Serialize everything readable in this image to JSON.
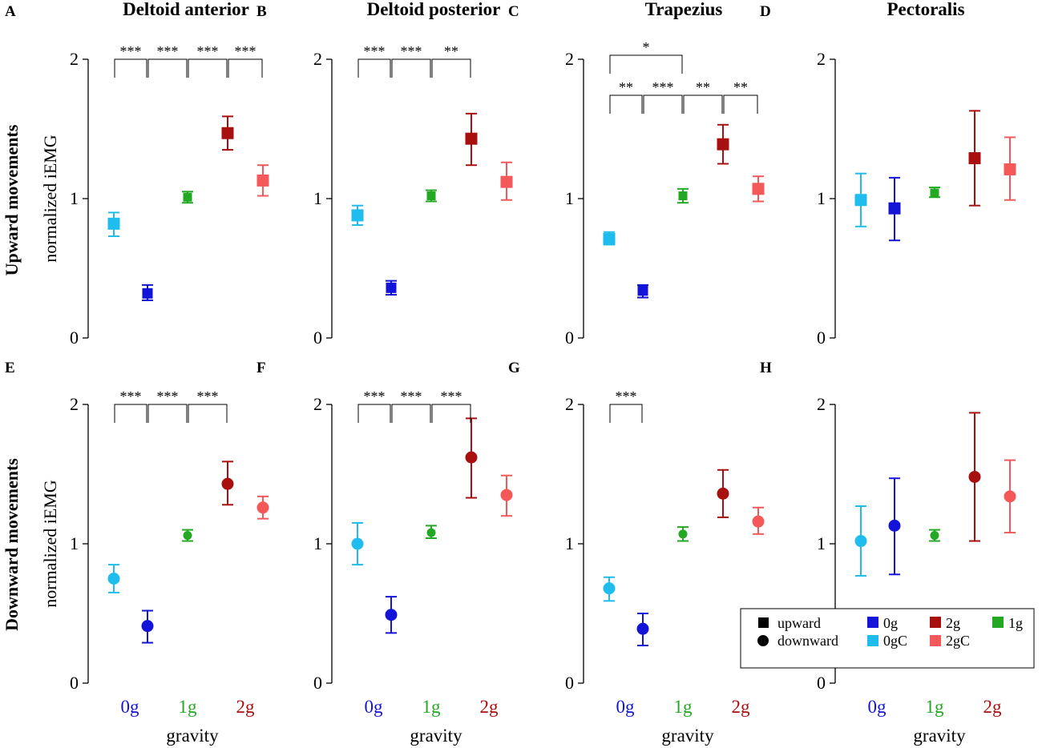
{
  "figure": {
    "row_labels": [
      "Upward movements",
      "Downward movements"
    ],
    "y_axis_label": "normalized iEMG",
    "x_axis_label": "gravity",
    "x_group_labels": [
      {
        "label": "0g",
        "color": "#1414d8"
      },
      {
        "label": "1g",
        "color": "#22a822"
      },
      {
        "label": "2g",
        "color": "#a81010"
      }
    ],
    "colors": {
      "0gC": "#1ebdee",
      "0g": "#1414d8",
      "1g": "#22a822",
      "2g": "#a81010",
      "2gC": "#f45858"
    },
    "legend": {
      "shape_entries": [
        {
          "label": "upward",
          "shape": "square"
        },
        {
          "label": "downward",
          "shape": "circle"
        }
      ],
      "color_entries": [
        {
          "label": "0g",
          "color": "#1414d8"
        },
        {
          "label": "0gC",
          "color": "#1ebdee"
        },
        {
          "label": "2g",
          "color": "#a81010"
        },
        {
          "label": "2gC",
          "color": "#f45858"
        },
        {
          "label": "1g",
          "color": "#22a822"
        }
      ]
    }
  },
  "chart_data": [
    {
      "panel": "A",
      "title": "Deltoid anterior",
      "type": "scatter",
      "direction": "upward",
      "marker": "square",
      "ylim": [
        0,
        2
      ],
      "yticks": [
        "0",
        "1",
        "2"
      ],
      "categories": [
        "0gC",
        "0g",
        "1g",
        "2g",
        "2gC"
      ],
      "values": [
        0.82,
        0.32,
        1.01,
        1.47,
        1.13
      ],
      "err_low": [
        0.73,
        0.27,
        0.97,
        1.35,
        1.02
      ],
      "err_high": [
        0.9,
        0.38,
        1.05,
        1.59,
        1.24
      ],
      "significance": [
        {
          "from": "0gC",
          "to": "0g",
          "label": "***",
          "level": 0
        },
        {
          "from": "0g",
          "to": "1g",
          "label": "***",
          "level": 0
        },
        {
          "from": "1g",
          "to": "2g",
          "label": "***",
          "level": 0
        },
        {
          "from": "2g",
          "to": "2gC",
          "label": "***",
          "level": 0
        }
      ]
    },
    {
      "panel": "B",
      "title": "Deltoid posterior",
      "type": "scatter",
      "direction": "upward",
      "marker": "square",
      "ylim": [
        0,
        2
      ],
      "yticks": [
        "0",
        "1",
        "2"
      ],
      "categories": [
        "0gC",
        "0g",
        "1g",
        "2g",
        "2gC"
      ],
      "values": [
        0.88,
        0.36,
        1.02,
        1.43,
        1.12
      ],
      "err_low": [
        0.81,
        0.31,
        0.98,
        1.24,
        0.99
      ],
      "err_high": [
        0.95,
        0.41,
        1.06,
        1.61,
        1.26
      ],
      "significance": [
        {
          "from": "0gC",
          "to": "0g",
          "label": "***",
          "level": 0
        },
        {
          "from": "0g",
          "to": "1g",
          "label": "***",
          "level": 0
        },
        {
          "from": "1g",
          "to": "2g",
          "label": "**",
          "level": 0
        }
      ]
    },
    {
      "panel": "C",
      "title": "Trapezius",
      "type": "scatter",
      "direction": "upward",
      "marker": "square",
      "ylim": [
        0,
        2
      ],
      "yticks": [
        "0",
        "1",
        "2"
      ],
      "categories": [
        "0gC",
        "0g",
        "1g",
        "2g",
        "2gC"
      ],
      "values": [
        0.71,
        0.34,
        1.02,
        1.39,
        1.07
      ],
      "err_low": [
        0.67,
        0.29,
        0.97,
        1.25,
        0.98
      ],
      "err_high": [
        0.76,
        0.38,
        1.07,
        1.53,
        1.16
      ],
      "significance": [
        {
          "from": "0gC",
          "to": "1g",
          "label": "*",
          "level": 1
        },
        {
          "from": "0gC",
          "to": "0g",
          "label": "**",
          "level": 0
        },
        {
          "from": "0g",
          "to": "1g",
          "label": "***",
          "level": 0
        },
        {
          "from": "1g",
          "to": "2g",
          "label": "**",
          "level": 0
        },
        {
          "from": "2g",
          "to": "2gC",
          "label": "**",
          "level": 0
        }
      ]
    },
    {
      "panel": "D",
      "title": "Pectoralis",
      "type": "scatter",
      "direction": "upward",
      "marker": "square",
      "ylim": [
        0,
        2
      ],
      "yticks": [
        "0",
        "1",
        "2"
      ],
      "categories": [
        "0gC",
        "0g",
        "1g",
        "2g",
        "2gC"
      ],
      "values": [
        0.99,
        0.93,
        1.04,
        1.29,
        1.21
      ],
      "err_low": [
        0.8,
        0.7,
        1.01,
        0.95,
        0.99
      ],
      "err_high": [
        1.18,
        1.15,
        1.08,
        1.63,
        1.44
      ],
      "significance": []
    },
    {
      "panel": "E",
      "title": "",
      "type": "scatter",
      "direction": "downward",
      "marker": "circle",
      "ylim": [
        0,
        2
      ],
      "yticks": [
        "0",
        "1",
        "2"
      ],
      "categories": [
        "0gC",
        "0g",
        "1g",
        "2g",
        "2gC"
      ],
      "values": [
        0.75,
        0.41,
        1.06,
        1.43,
        1.26
      ],
      "err_low": [
        0.65,
        0.29,
        1.02,
        1.28,
        1.18
      ],
      "err_high": [
        0.85,
        0.52,
        1.1,
        1.59,
        1.34
      ],
      "significance": [
        {
          "from": "0gC",
          "to": "0g",
          "label": "***",
          "level": 0
        },
        {
          "from": "0g",
          "to": "1g",
          "label": "***",
          "level": 0
        },
        {
          "from": "1g",
          "to": "2g",
          "label": "***",
          "level": 0
        }
      ]
    },
    {
      "panel": "F",
      "title": "",
      "type": "scatter",
      "direction": "downward",
      "marker": "circle",
      "ylim": [
        0,
        2
      ],
      "yticks": [
        "0",
        "1",
        "2"
      ],
      "categories": [
        "0gC",
        "0g",
        "1g",
        "2g",
        "2gC"
      ],
      "values": [
        1.0,
        0.49,
        1.08,
        1.62,
        1.35
      ],
      "err_low": [
        0.85,
        0.36,
        1.04,
        1.33,
        1.2
      ],
      "err_high": [
        1.15,
        0.62,
        1.13,
        1.9,
        1.49
      ],
      "significance": [
        {
          "from": "0gC",
          "to": "0g",
          "label": "***",
          "level": 0
        },
        {
          "from": "0g",
          "to": "1g",
          "label": "***",
          "level": 0
        },
        {
          "from": "1g",
          "to": "2g",
          "label": "***",
          "level": 0
        }
      ]
    },
    {
      "panel": "G",
      "title": "",
      "type": "scatter",
      "direction": "downward",
      "marker": "circle",
      "ylim": [
        0,
        2
      ],
      "yticks": [
        "0",
        "1",
        "2"
      ],
      "categories": [
        "0gC",
        "0g",
        "1g",
        "2g",
        "2gC"
      ],
      "values": [
        0.68,
        0.39,
        1.07,
        1.36,
        1.16
      ],
      "err_low": [
        0.59,
        0.27,
        1.02,
        1.19,
        1.07
      ],
      "err_high": [
        0.76,
        0.5,
        1.12,
        1.53,
        1.26
      ],
      "significance": [
        {
          "from": "0gC",
          "to": "0g",
          "label": "***",
          "level": 0
        }
      ]
    },
    {
      "panel": "H",
      "title": "",
      "type": "scatter",
      "direction": "downward",
      "marker": "circle",
      "ylim": [
        0,
        2
      ],
      "yticks": [
        "0",
        "1",
        "2"
      ],
      "categories": [
        "0gC",
        "0g",
        "1g",
        "2g",
        "2gC"
      ],
      "values": [
        1.02,
        1.13,
        1.06,
        1.48,
        1.34
      ],
      "err_low": [
        0.77,
        0.78,
        1.02,
        1.02,
        1.08
      ],
      "err_high": [
        1.27,
        1.47,
        1.1,
        1.94,
        1.6
      ],
      "significance": []
    }
  ]
}
